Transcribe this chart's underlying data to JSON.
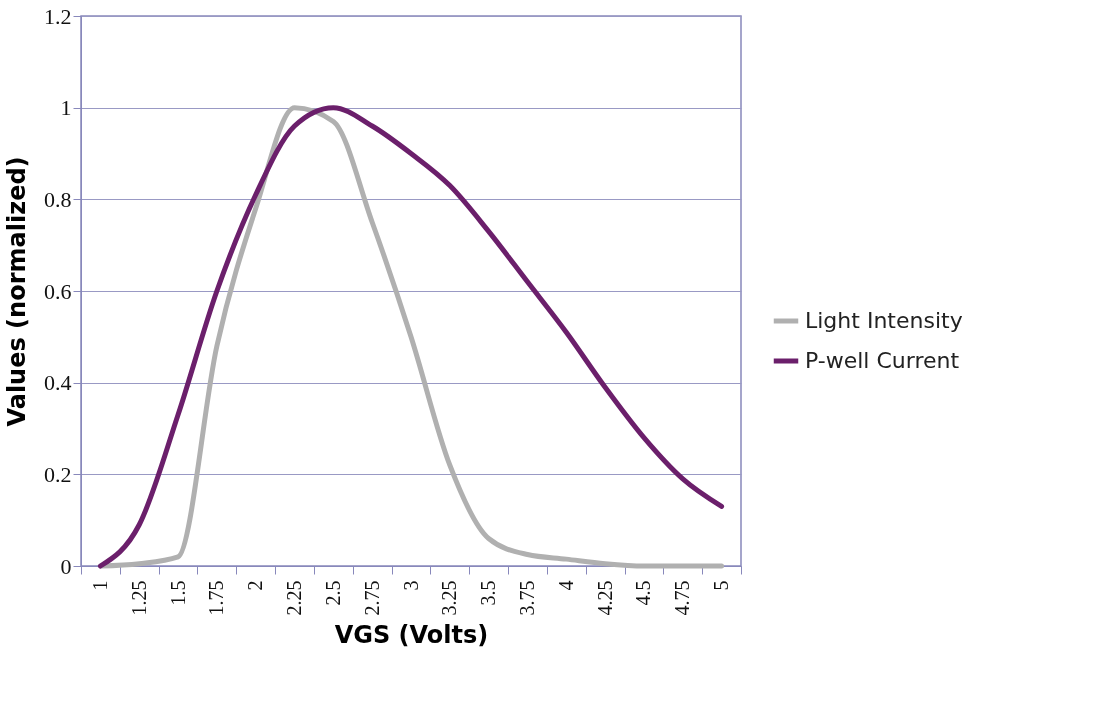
{
  "chart_data": {
    "type": "line",
    "xlabel": "VGS (Volts)",
    "ylabel": "Values (normalized)",
    "categories": [
      "1",
      "1.25",
      "1.5",
      "1.75",
      "2",
      "2.25",
      "2.5",
      "2.75",
      "3",
      "3.25",
      "3.5",
      "3.75",
      "4",
      "4.25",
      "4.5",
      "4.75",
      "5"
    ],
    "series": [
      {
        "name": "Light Intensity",
        "color": "#b0b0b0",
        "values": [
          0,
          0.005,
          0.02,
          0.48,
          0.78,
          1.0,
          0.97,
          0.75,
          0.5,
          0.22,
          0.06,
          0.025,
          0.015,
          0.005,
          0,
          0,
          0
        ]
      },
      {
        "name": "P-well Current",
        "color": "#6b1f6b",
        "values": [
          0,
          0.09,
          0.33,
          0.6,
          0.81,
          0.96,
          1.0,
          0.96,
          0.9,
          0.83,
          0.73,
          0.62,
          0.51,
          0.39,
          0.28,
          0.19,
          0.13
        ]
      }
    ],
    "ylim": [
      0,
      1.2
    ],
    "yticks": [
      0,
      0.2,
      0.4,
      0.6,
      0.8,
      1,
      1.2
    ],
    "grid": "y",
    "legend": "right",
    "marker": "none",
    "line_style": "solid"
  }
}
